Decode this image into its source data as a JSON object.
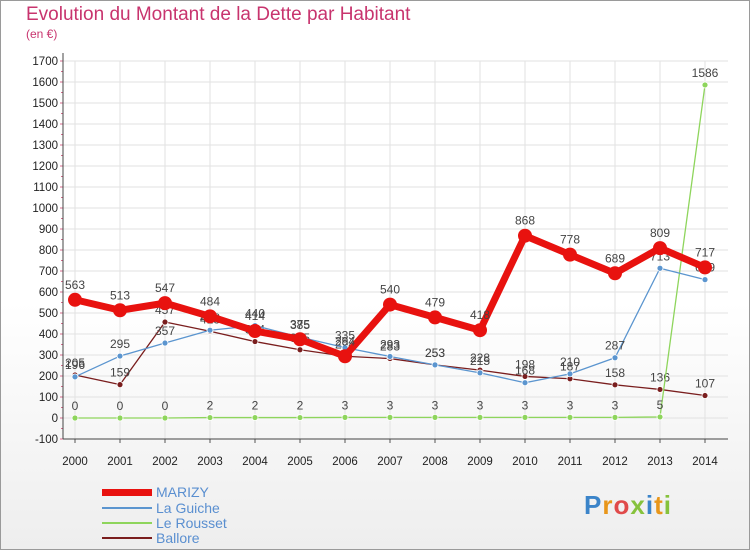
{
  "title": "Evolution du Montant de la Dette par Habitant",
  "subtitle": "(en €)",
  "logo": "Proxiti",
  "chart_data": {
    "type": "line",
    "x": [
      2000,
      2001,
      2002,
      2003,
      2004,
      2005,
      2006,
      2007,
      2008,
      2009,
      2010,
      2011,
      2012,
      2013,
      2014
    ],
    "ylim": [
      -100,
      1700
    ],
    "yticks": [
      -100,
      0,
      100,
      200,
      300,
      400,
      500,
      600,
      700,
      800,
      900,
      1000,
      1100,
      1200,
      1300,
      1400,
      1500,
      1600,
      1700
    ],
    "grid": true,
    "legend_position": "bottom-left",
    "series": [
      {
        "name": "Ballore",
        "color": "#7a1e1e",
        "width": 1.3,
        "marker": 3,
        "values": [
          205,
          159,
          457,
          413,
          364,
          325,
          294,
          283,
          253,
          228,
          198,
          187,
          158,
          136,
          107
        ]
      },
      {
        "name": "Le Rousset",
        "color": "#8ed55c",
        "width": 1.3,
        "marker": 3,
        "values": [
          0,
          0,
          0,
          2,
          2,
          2,
          3,
          3,
          3,
          3,
          3,
          3,
          3,
          5,
          1586
        ]
      },
      {
        "name": "La Guiche",
        "color": "#5b95cf",
        "width": 1.3,
        "marker": 3,
        "values": [
          196,
          295,
          357,
          418,
          440,
          385,
          335,
          293,
          253,
          215,
          168,
          210,
          287,
          713,
          659
        ]
      },
      {
        "name": "MARIZY",
        "color": "#e8120f",
        "width": 7,
        "marker": 7,
        "values": [
          563,
          513,
          547,
          484,
          414,
          375,
          294,
          540,
          479,
          418,
          868,
          778,
          689,
          809,
          717
        ]
      }
    ],
    "legend": [
      "MARIZY",
      "La Guiche",
      "Le Rousset",
      "Ballore"
    ]
  }
}
